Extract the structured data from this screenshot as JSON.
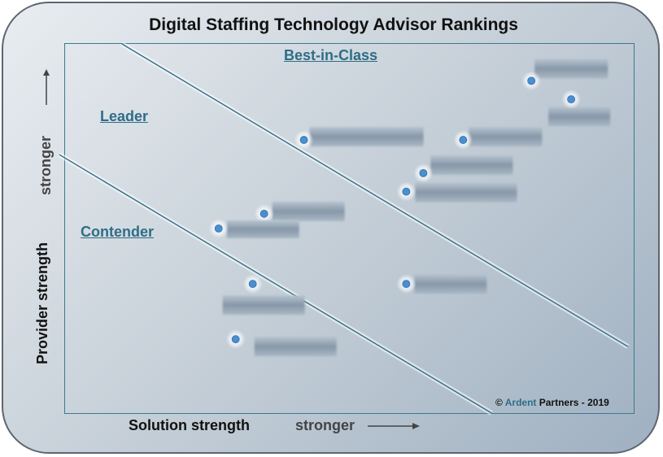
{
  "chart_data": {
    "type": "scatter",
    "title": "Digital Staffing Technology Advisor Rankings",
    "xlabel": "Solution strength",
    "ylabel": "Provider strength",
    "x_direction_label": "stronger",
    "y_direction_label": "stronger",
    "xlim": [
      0,
      100
    ],
    "ylim": [
      0,
      100
    ],
    "regions": [
      {
        "name": "Best-in-Class"
      },
      {
        "name": "Leader"
      },
      {
        "name": "Contender"
      }
    ],
    "boundaries": [
      {
        "from": [
          -1,
          70
        ],
        "to": [
          75,
          0
        ]
      },
      {
        "from": [
          10,
          100
        ],
        "to": [
          99,
          18
        ]
      }
    ],
    "points": [
      {
        "x": 82,
        "y": 90,
        "label_redacted": true
      },
      {
        "x": 89,
        "y": 85,
        "label_redacted": true
      },
      {
        "x": 42,
        "y": 74,
        "label_redacted": true
      },
      {
        "x": 70,
        "y": 74,
        "label_redacted": true
      },
      {
        "x": 63,
        "y": 65,
        "label_redacted": true
      },
      {
        "x": 60,
        "y": 60,
        "label_redacted": true
      },
      {
        "x": 35,
        "y": 54,
        "label_redacted": true
      },
      {
        "x": 27,
        "y": 50,
        "label_redacted": true
      },
      {
        "x": 60,
        "y": 35,
        "label_redacted": true
      },
      {
        "x": 33,
        "y": 35,
        "label_redacted": true
      },
      {
        "x": 30,
        "y": 20,
        "label_redacted": true
      }
    ],
    "grid": false,
    "legend": "none"
  },
  "copyright": {
    "prefix": "© ",
    "brand": "Ardent",
    "suffix": " Partners - 2019"
  }
}
